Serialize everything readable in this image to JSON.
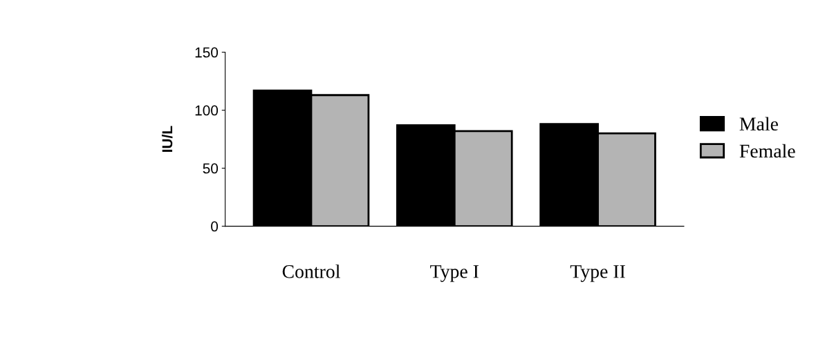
{
  "chart_data": {
    "type": "bar",
    "ylabel": "IU/L",
    "categories": [
      "Control",
      "Type I",
      "Type II"
    ],
    "series": [
      {
        "name": "Male",
        "color": "#000000",
        "values": [
          117,
          87,
          88
        ]
      },
      {
        "name": "Female",
        "color": "#b4b4b4",
        "values": [
          113,
          82,
          80
        ]
      }
    ],
    "ylim": [
      0,
      150
    ],
    "yticks": [
      0,
      50,
      100,
      150
    ],
    "legend": "right"
  }
}
